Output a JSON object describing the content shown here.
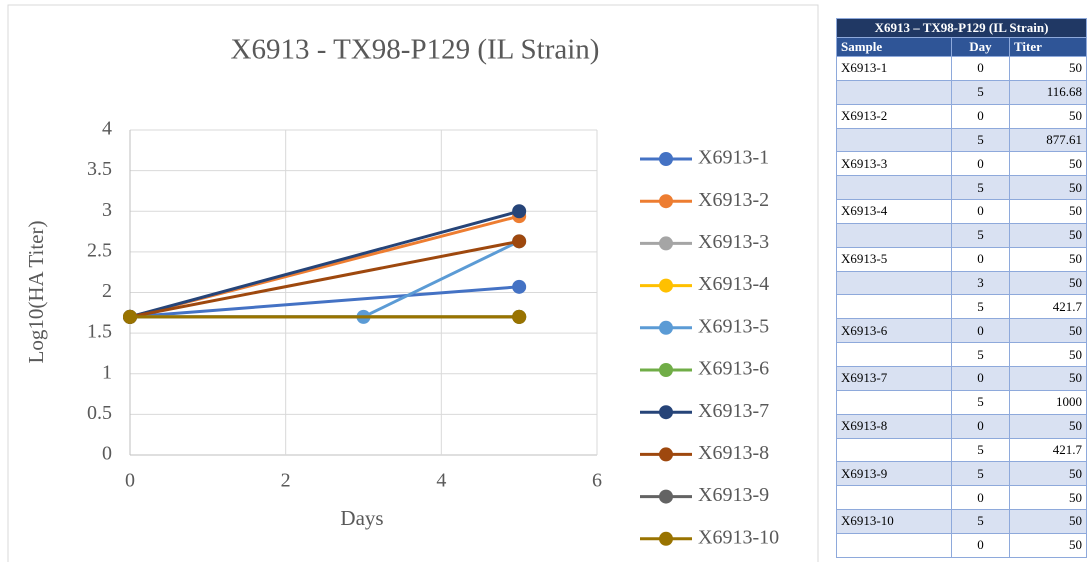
{
  "chart_data": {
    "type": "line",
    "title": "X6913 - TX98-P129 (IL Strain)",
    "x_label": "Days",
    "y_label": "Log10(HA Titer)",
    "xlim": [
      0,
      6
    ],
    "xticks": [
      0,
      2,
      4,
      6
    ],
    "ylim": [
      0,
      4
    ],
    "yticks": [
      0,
      0.5,
      1,
      1.5,
      2,
      2.5,
      3,
      3.5,
      4
    ],
    "grid": true,
    "legend": "right",
    "series": [
      {
        "name": "X6913-1",
        "color": "#4472c4",
        "x": [
          0,
          5
        ],
        "values": [
          1.7,
          2.07
        ]
      },
      {
        "name": "X6913-2",
        "color": "#ed7d31",
        "x": [
          0,
          5
        ],
        "values": [
          1.7,
          2.94
        ]
      },
      {
        "name": "X6913-3",
        "color": "#a5a5a5",
        "x": [
          0,
          5
        ],
        "values": [
          1.7,
          1.7
        ]
      },
      {
        "name": "X6913-4",
        "color": "#ffc000",
        "x": [
          0,
          5
        ],
        "values": [
          1.7,
          1.7
        ]
      },
      {
        "name": "X6913-5",
        "color": "#5b9bd5",
        "x": [
          0,
          3,
          5
        ],
        "values": [
          1.7,
          1.7,
          2.63
        ]
      },
      {
        "name": "X6913-6",
        "color": "#70ad47",
        "x": [
          0,
          5
        ],
        "values": [
          1.7,
          1.7
        ]
      },
      {
        "name": "X6913-7",
        "color": "#264478",
        "x": [
          0,
          5
        ],
        "values": [
          1.7,
          3.0
        ]
      },
      {
        "name": "X6913-8",
        "color": "#9e480e",
        "x": [
          0,
          5
        ],
        "values": [
          1.7,
          2.63
        ]
      },
      {
        "name": "X6913-9",
        "color": "#636363",
        "x": [
          0,
          5
        ],
        "values": [
          1.7,
          1.7
        ]
      },
      {
        "name": "X6913-10",
        "color": "#997300",
        "x": [
          0,
          5
        ],
        "values": [
          1.7,
          1.7
        ]
      }
    ]
  },
  "table": {
    "title": "X6913 – TX98-P129 (IL Strain)",
    "header": [
      "Sample",
      "Day",
      "Titer"
    ],
    "rows": [
      [
        "X6913-1",
        0,
        50
      ],
      [
        null,
        5,
        116.68
      ],
      [
        "X6913-2",
        0,
        50
      ],
      [
        null,
        5,
        877.61
      ],
      [
        "X6913-3",
        0,
        50
      ],
      [
        null,
        5,
        50
      ],
      [
        "X6913-4",
        0,
        50
      ],
      [
        null,
        5,
        50
      ],
      [
        "X6913-5",
        0,
        50
      ],
      [
        null,
        3,
        50
      ],
      [
        null,
        5,
        421.7
      ],
      [
        "X6913-6",
        0,
        50
      ],
      [
        null,
        5,
        50
      ],
      [
        "X6913-7",
        0,
        50
      ],
      [
        null,
        5,
        1000
      ],
      [
        "X6913-8",
        0,
        50
      ],
      [
        null,
        5,
        421.7
      ],
      [
        "X6913-9",
        5,
        50
      ],
      [
        null,
        0,
        50
      ],
      [
        "X6913-10",
        5,
        50
      ],
      [
        null,
        0,
        50
      ]
    ]
  }
}
